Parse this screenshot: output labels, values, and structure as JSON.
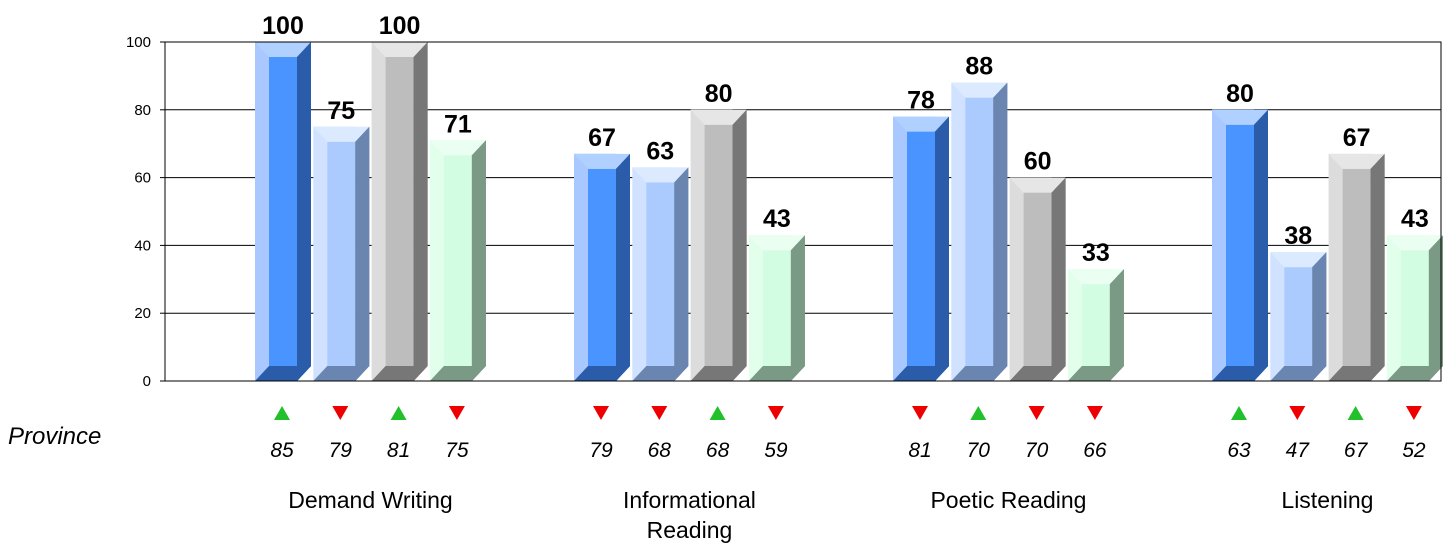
{
  "chart_data": {
    "type": "bar",
    "categories": [
      [
        "Demand Writing"
      ],
      [
        "Informational",
        "Reading"
      ],
      [
        "Poetic Reading"
      ],
      [
        "Listening"
      ]
    ],
    "series": [
      {
        "values": [
          100,
          67,
          78,
          80
        ]
      },
      {
        "values": [
          75,
          63,
          88,
          38
        ]
      },
      {
        "values": [
          100,
          80,
          60,
          67
        ]
      },
      {
        "values": [
          71,
          43,
          33,
          43
        ]
      }
    ],
    "province_label": "Province",
    "province": [
      {
        "values": [
          85,
          79,
          81,
          75
        ],
        "trend": [
          "up",
          "down",
          "up",
          "down"
        ]
      },
      {
        "values": [
          79,
          68,
          68,
          59
        ],
        "trend": [
          "down",
          "down",
          "up",
          "down"
        ]
      },
      {
        "values": [
          81,
          70,
          70,
          66
        ],
        "trend": [
          "down",
          "up",
          "down",
          "down"
        ]
      },
      {
        "values": [
          63,
          47,
          67,
          52
        ],
        "trend": [
          "up",
          "down",
          "up",
          "down"
        ]
      }
    ],
    "yticks": [
      0,
      20,
      40,
      60,
      80,
      100
    ],
    "ylim": [
      0,
      100
    ],
    "grid": true,
    "bar_styles": [
      {
        "front": "#4a94ff",
        "side": "#2a5caa",
        "top": "#b0d0ff",
        "left": "#a8c8ff",
        "bottom": "#2a5caa"
      },
      {
        "front": "#abcbff",
        "side": "#6a86b0",
        "top": "#dbeaff",
        "left": "#d0e2ff",
        "bottom": "#6a86b0"
      },
      {
        "front": "#bdbdbd",
        "side": "#777777",
        "top": "#e6e6e6",
        "left": "#dcdcdc",
        "bottom": "#777777"
      },
      {
        "front": "#d2fde2",
        "side": "#7a9a86",
        "top": "#eafff1",
        "left": "#e2ffec",
        "bottom": "#7a9a86"
      }
    ],
    "trend_colors": {
      "up": "#22c02a",
      "down": "#ee0000"
    }
  }
}
